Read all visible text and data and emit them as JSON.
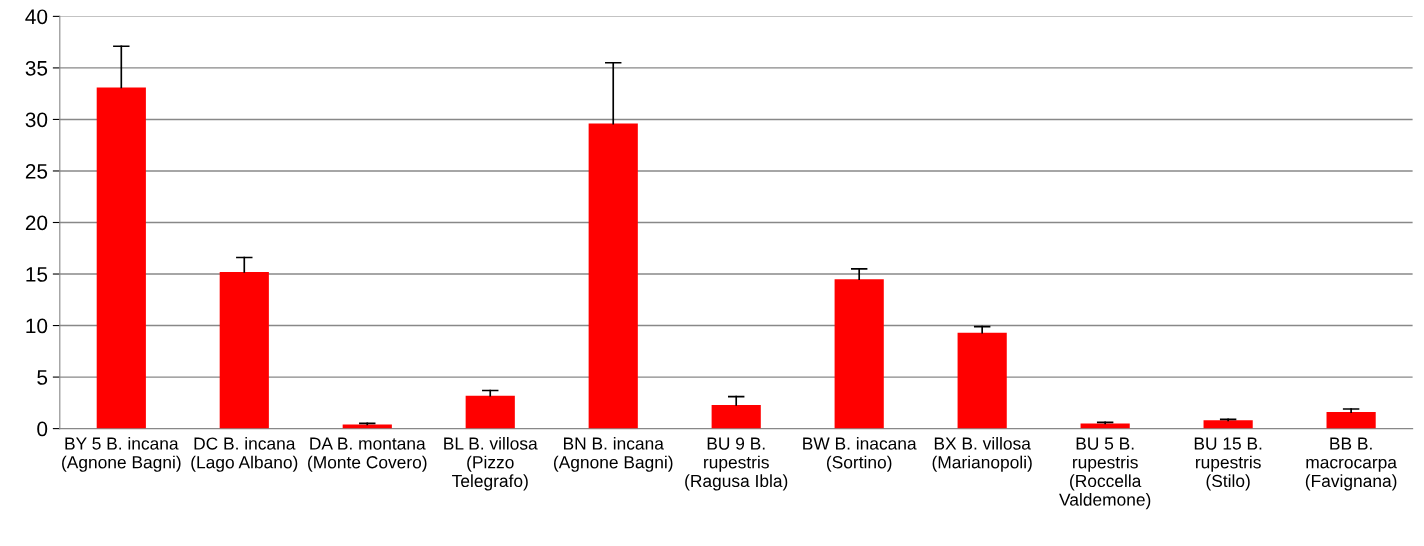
{
  "chart_data": {
    "type": "bar",
    "categories": [
      "BY 5 B. incana (Agnone Bagni)",
      "DC B. incana (Lago Albano)",
      "DA B. montana (Monte Covero)",
      "BL B. villosa (Pizzo Telegrafo)",
      "BN B. incana (Agnone Bagni)",
      "BU 9 B. rupestris (Ragusa Ibla)",
      "BW B. inacana (Sortino)",
      "BX B. villosa (Marianopoli)",
      "BU 5 B. rupestris (Roccella Valdemone)",
      "BU 15 B. rupestris (Stilo)",
      "BB B. macrocarpa (Favignana)"
    ],
    "values": [
      33.1,
      15.2,
      0.4,
      3.2,
      29.6,
      2.3,
      14.5,
      9.3,
      0.5,
      0.8,
      1.6
    ],
    "errors": [
      [
        33.1,
        37.1
      ],
      [
        15.2,
        16.6
      ],
      [
        0.4,
        0.5
      ],
      [
        3.2,
        3.7
      ],
      [
        29.6,
        35.5
      ],
      [
        2.3,
        3.1
      ],
      [
        14.5,
        15.5
      ],
      [
        9.3,
        9.9
      ],
      [
        0.5,
        0.6
      ],
      [
        0.8,
        0.9
      ],
      [
        1.6,
        1.9
      ]
    ],
    "color": "#ff0000",
    "ylim": [
      0,
      40
    ],
    "yticks": [
      0,
      5,
      10,
      15,
      20,
      25,
      30,
      35,
      40
    ],
    "grid": "y"
  }
}
